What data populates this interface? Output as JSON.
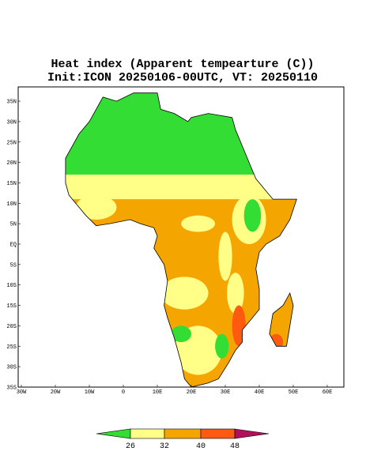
{
  "title": "Heat index (Apparent tempearture (C))",
  "subtitle": "Init:ICON 20250106-00UTC, VT: 20250110",
  "lat_labels": [
    "35N",
    "30N",
    "25N",
    "20N",
    "15N",
    "10N",
    "5N",
    "EQ",
    "5S",
    "10S",
    "15S",
    "20S",
    "25S",
    "30S",
    "35S"
  ],
  "lon_labels": [
    "30W",
    "20W",
    "10W",
    "0",
    "10E",
    "20E",
    "30E",
    "40E",
    "50E",
    "60E"
  ],
  "colorbar": {
    "labels": [
      26,
      32,
      40,
      48
    ]
  }
}
